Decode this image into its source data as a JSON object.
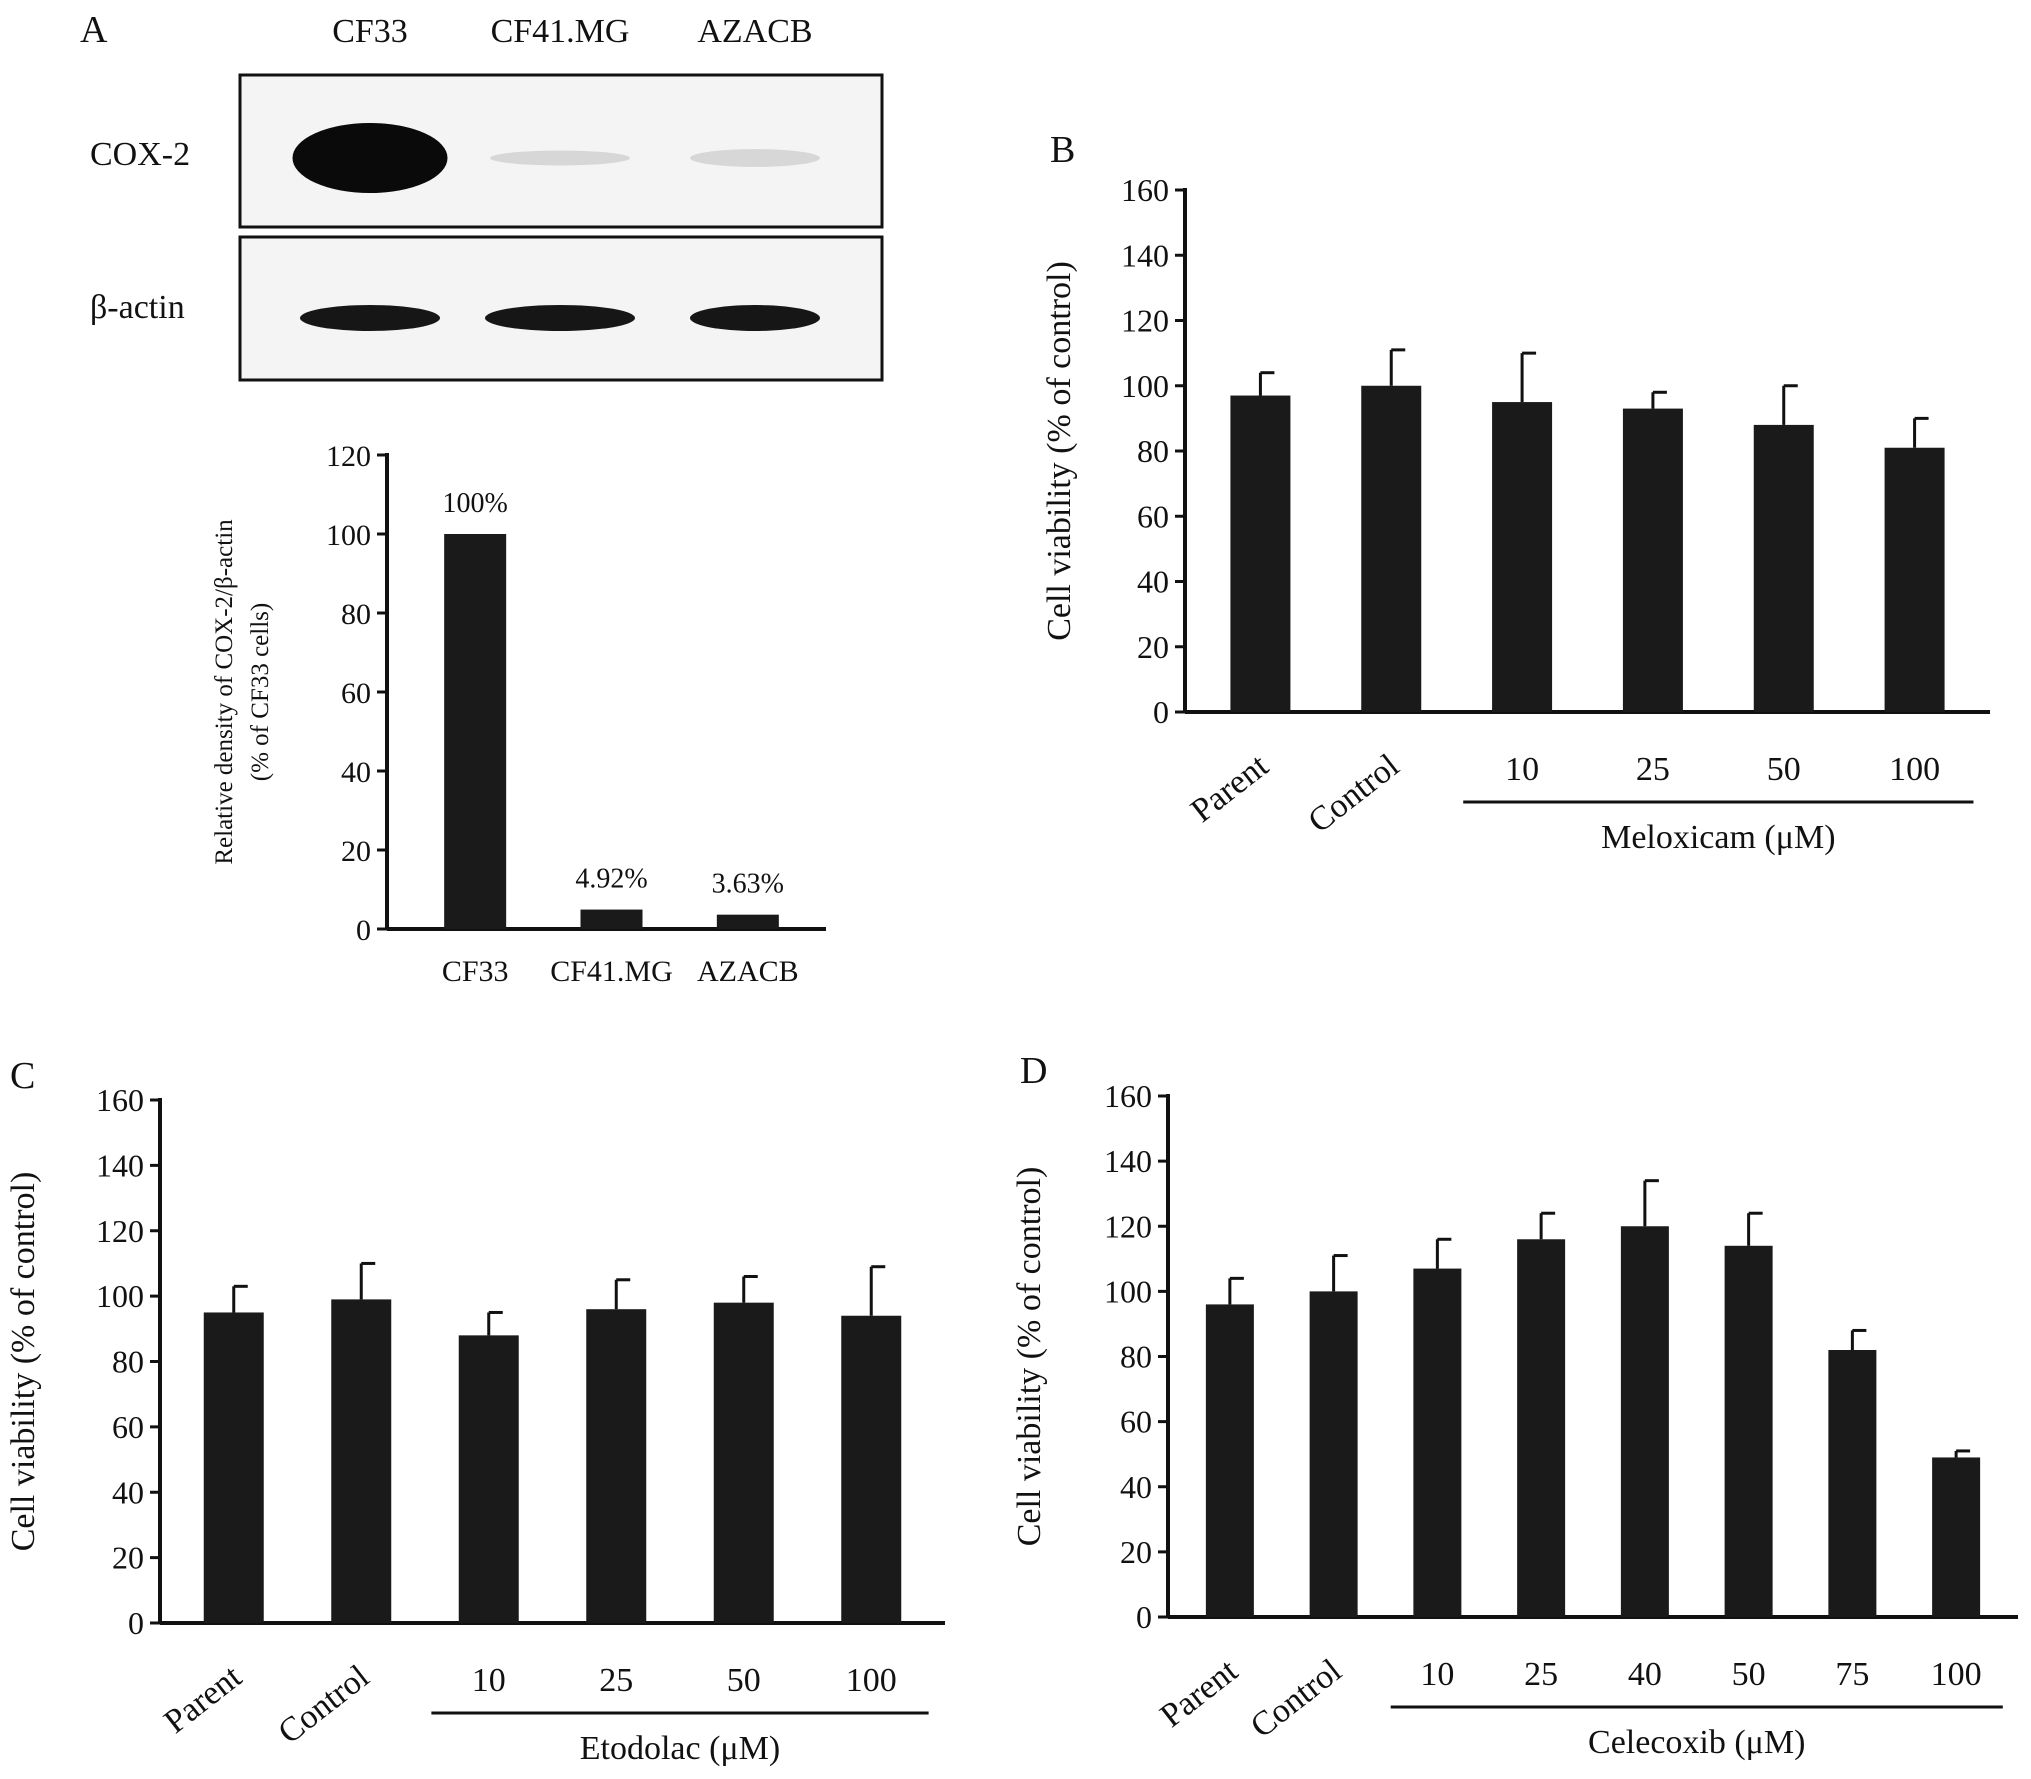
{
  "panel_labels": {
    "a": "A",
    "b": "B",
    "c": "C",
    "d": "D"
  },
  "blot": {
    "lanes": [
      "CF33",
      "CF41.MG",
      "AZACB"
    ],
    "rows": [
      "COX-2",
      "β-actin"
    ],
    "cox2_intensity": [
      1.0,
      0.05,
      0.1
    ],
    "actin_intensity": [
      1.0,
      1.0,
      1.0
    ]
  },
  "colors": {
    "bar": "#1a1a1a",
    "axis": "#111111",
    "blot_bg": "#f4f4f4",
    "band": "#0a0a0a"
  },
  "chart_data": [
    {
      "panel": "A",
      "type": "bar",
      "categories": [
        "CF33",
        "CF41.MG",
        "AZACB"
      ],
      "values": [
        100,
        4.92,
        3.63
      ],
      "data_labels": [
        "100%",
        "4.92%",
        "3.63%"
      ],
      "ylabel": "Relative density of COX-2/β-actin",
      "ylabel2": "(% of CF33 cells)",
      "ylim": [
        0,
        120
      ],
      "yticks": [
        0,
        20,
        40,
        60,
        80,
        100,
        120
      ],
      "grid": false
    },
    {
      "panel": "B",
      "type": "bar",
      "categories": [
        "Parent",
        "Control",
        "10",
        "25",
        "50",
        "100"
      ],
      "values": [
        97,
        100,
        95,
        93,
        88,
        81
      ],
      "errors": [
        7,
        11,
        15,
        5,
        12,
        9
      ],
      "ylabel": "Cell viability (% of control)",
      "group_label": "Meloxicam (μM)",
      "rotated_categories": [
        "Parent",
        "Control"
      ],
      "ylim": [
        0,
        160
      ],
      "yticks": [
        0,
        20,
        40,
        60,
        80,
        100,
        120,
        140,
        160
      ],
      "grid": false
    },
    {
      "panel": "C",
      "type": "bar",
      "categories": [
        "Parent",
        "Control",
        "10",
        "25",
        "50",
        "100"
      ],
      "values": [
        95,
        99,
        88,
        96,
        98,
        94
      ],
      "errors": [
        8,
        11,
        7,
        9,
        8,
        15
      ],
      "ylabel": "Cell viability (% of control)",
      "group_label": "Etodolac (μM)",
      "rotated_categories": [
        "Parent",
        "Control"
      ],
      "ylim": [
        0,
        160
      ],
      "yticks": [
        0,
        20,
        40,
        60,
        80,
        100,
        120,
        140,
        160
      ],
      "grid": false
    },
    {
      "panel": "D",
      "type": "bar",
      "categories": [
        "Parent",
        "Control",
        "10",
        "25",
        "40",
        "50",
        "75",
        "100"
      ],
      "values": [
        96,
        100,
        107,
        116,
        120,
        114,
        82,
        49
      ],
      "errors": [
        8,
        11,
        9,
        8,
        14,
        10,
        6,
        2
      ],
      "ylabel": "Cell viability (% of control)",
      "group_label": "Celecoxib (μM)",
      "rotated_categories": [
        "Parent",
        "Control"
      ],
      "ylim": [
        0,
        160
      ],
      "yticks": [
        0,
        20,
        40,
        60,
        80,
        100,
        120,
        140,
        160
      ],
      "grid": false
    }
  ]
}
